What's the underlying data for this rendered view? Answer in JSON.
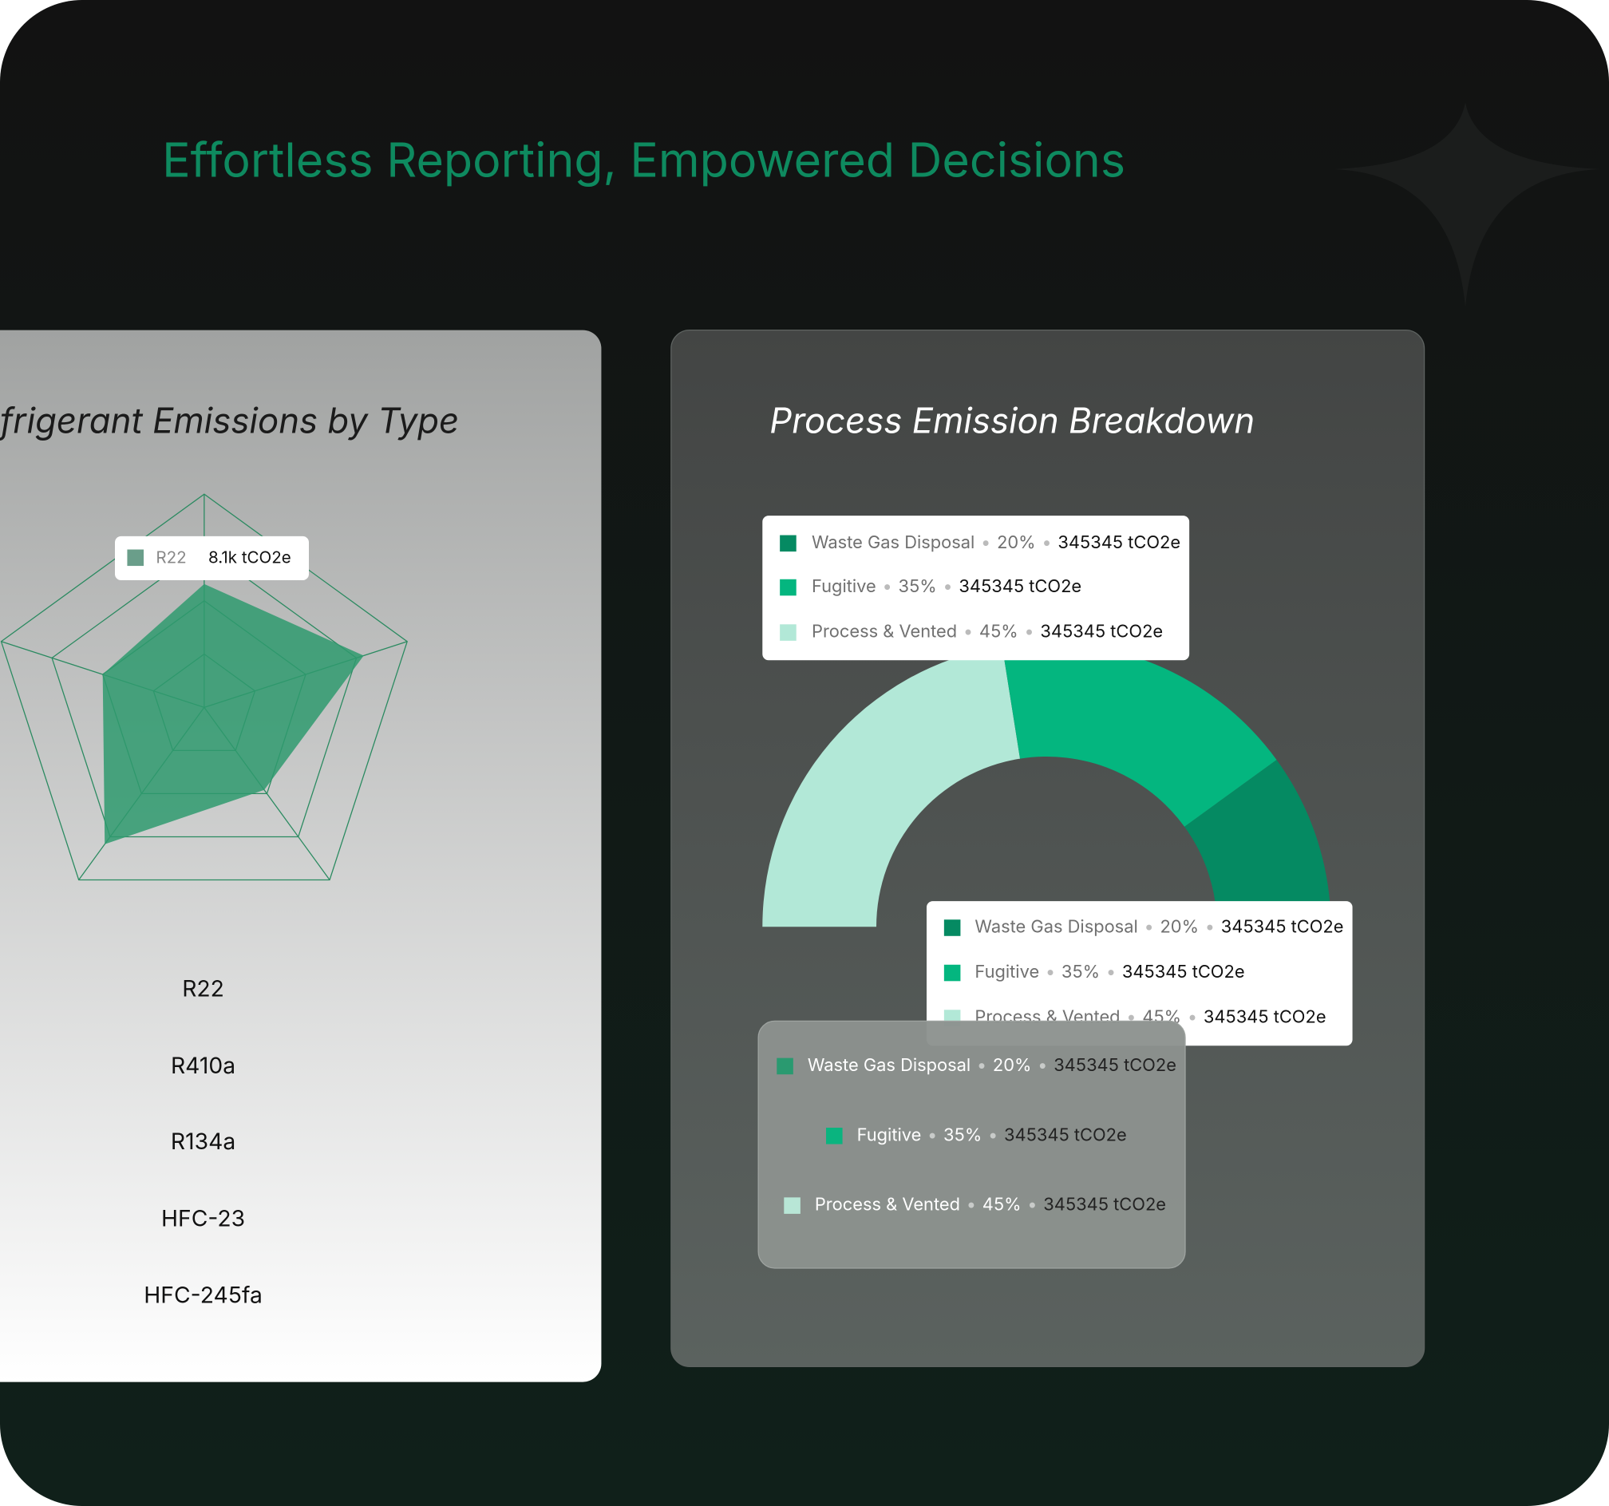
{
  "header": {
    "title": "Effortless Reporting, Empowered Decisions"
  },
  "radar_card": {
    "title": "frigerant Emissions by Type",
    "chart_data": {
      "type": "radar",
      "categories": [
        "R22",
        "R410a",
        "R134a",
        "HFC-23",
        "HFC-245fa"
      ],
      "values": [
        8.1,
        11,
        6.7,
        11.1,
        7
      ],
      "rlim": [
        0,
        14
      ],
      "rticks": [
        3.5,
        7,
        10.5,
        14
      ],
      "color": "#2f9a6e",
      "grid_color": "#2a8a60",
      "tooltip": {
        "category": "R22",
        "value": 8.1,
        "label": "8.1k tCO2e",
        "color": "#6a9e8a"
      }
    }
  },
  "donut_card": {
    "title": "Process Emission Breakdown",
    "type": "half-donut",
    "legends": [
      {
        "items": [
          {
            "name": "Waste Gas Disposal",
            "color": "#058a62",
            "share": {
              "value": 20,
              "label": "20%"
            },
            "amount": {
              "value": 345345,
              "label": "345345 tCO2e"
            }
          },
          {
            "name": "Fugitive",
            "color": "#04b67f",
            "share": {
              "value": 35,
              "label": "35%"
            },
            "amount": {
              "value": 345345,
              "label": "345345 tCO2e"
            }
          },
          {
            "name": "Process & Vented",
            "color": "#b2e8d7",
            "share": {
              "value": 45,
              "label": "45%"
            },
            "amount": {
              "value": 345345,
              "label": "345345 tCO2e"
            }
          }
        ]
      },
      {
        "items": [
          {
            "name": "Waste Gas Disposal",
            "color": "#058a62",
            "share": {
              "value": 20,
              "label": "20%"
            },
            "amount": {
              "value": 345345,
              "label": "345345 tCO2e"
            }
          },
          {
            "name": "Fugitive",
            "color": "#04b67f",
            "share": {
              "value": 35,
              "label": "35%"
            },
            "amount": {
              "value": 345345,
              "label": "345345 tCO2e"
            }
          },
          {
            "name": "Process & Vented",
            "color": "#b2e8d7",
            "share": {
              "value": 45,
              "label": "45%"
            },
            "amount": {
              "value": 345345,
              "label": "345345 tCO2e"
            }
          }
        ]
      },
      {
        "items": [
          {
            "name": "Waste Gas Disposal",
            "color": "#2a9a70",
            "share": {
              "value": 20,
              "label": "20%"
            },
            "amount": {
              "value": 345345,
              "label": "345345 tCO2e"
            }
          },
          {
            "name": "Fugitive",
            "color": "#0ab47f",
            "share": {
              "value": 35,
              "label": "35%"
            },
            "amount": {
              "value": 345345,
              "label": "345345 tCO2e"
            }
          },
          {
            "name": "Process & Vented",
            "color": "#b8e6d6",
            "share": {
              "value": 45,
              "label": "45%"
            },
            "amount": {
              "value": 345345,
              "label": "345345 tCO2e"
            }
          }
        ]
      }
    ]
  }
}
